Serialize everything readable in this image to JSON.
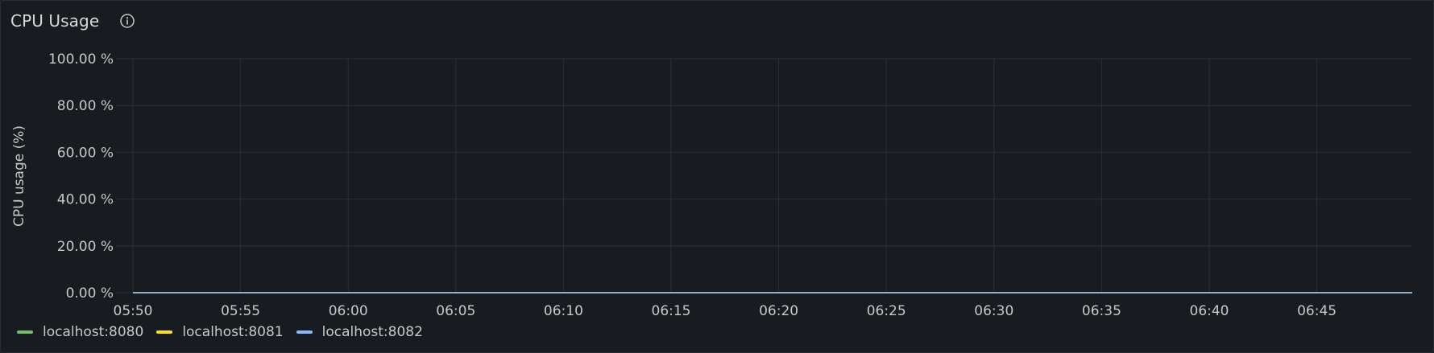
{
  "panel": {
    "title": "CPU Usage",
    "info_icon": "info-circle-icon"
  },
  "colors": {
    "panel_bg": "#181b1f",
    "grid": "#2c2f35",
    "tick_text": "#c7c8ca",
    "series_1": "#73bf69",
    "series_2": "#fade2a",
    "series_3": "#8ab8ff"
  },
  "chart_data": {
    "type": "line",
    "title": "CPU Usage",
    "xlabel": "",
    "ylabel": "CPU usage (%)",
    "y_ticks": [
      "0.00 %",
      "20.00 %",
      "40.00 %",
      "60.00 %",
      "80.00 %",
      "100.00 %"
    ],
    "ylim": [
      0,
      100
    ],
    "x_ticks": [
      "05:50",
      "05:55",
      "06:00",
      "06:05",
      "06:10",
      "06:15",
      "06:20",
      "06:25",
      "06:30",
      "06:35",
      "06:40",
      "06:45"
    ],
    "xlim": [
      "05:50",
      "06:49:30"
    ],
    "grid": true,
    "legend_placement": "bottom-left",
    "series": [
      {
        "name": "localhost:8080",
        "color": "#73bf69",
        "x": [
          "05:50",
          "06:49:30"
        ],
        "values": [
          0,
          0
        ]
      },
      {
        "name": "localhost:8081",
        "color": "#fade2a",
        "x": [
          "05:50",
          "06:49:30"
        ],
        "values": [
          0,
          0
        ]
      },
      {
        "name": "localhost:8082",
        "color": "#8ab8ff",
        "x": [
          "05:50",
          "06:49:30"
        ],
        "values": [
          0,
          0
        ]
      }
    ]
  }
}
